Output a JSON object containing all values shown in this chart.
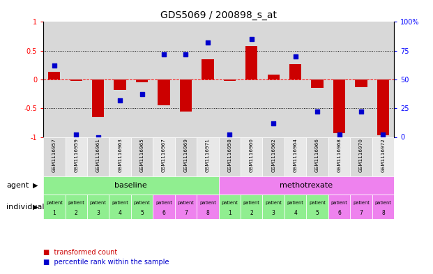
{
  "title": "GDS5069 / 200898_s_at",
  "samples": [
    "GSM1116957",
    "GSM1116959",
    "GSM1116961",
    "GSM1116963",
    "GSM1116965",
    "GSM1116967",
    "GSM1116969",
    "GSM1116971",
    "GSM1116958",
    "GSM1116960",
    "GSM1116962",
    "GSM1116964",
    "GSM1116966",
    "GSM1116968",
    "GSM1116970",
    "GSM1116972"
  ],
  "bar_values": [
    0.13,
    -0.03,
    -0.65,
    -0.18,
    -0.05,
    -0.45,
    -0.56,
    0.35,
    -0.02,
    0.58,
    0.08,
    0.27,
    -0.14,
    -0.93,
    -0.13,
    -0.97
  ],
  "dot_values": [
    62,
    2,
    0,
    32,
    37,
    72,
    72,
    82,
    2,
    85,
    12,
    70,
    22,
    2,
    22,
    2
  ],
  "bar_color": "#cc0000",
  "dot_color": "#0000cc",
  "ylim": [
    -1,
    1
  ],
  "y2lim": [
    0,
    100
  ],
  "yticks": [
    -1,
    -0.5,
    0,
    0.5,
    1
  ],
  "ytick_labels": [
    "-1",
    "-0.5",
    "0",
    "0.5",
    "1"
  ],
  "y2ticks": [
    0,
    25,
    50,
    75,
    100
  ],
  "y2tick_labels": [
    "0",
    "25",
    "50",
    "75",
    "100%"
  ],
  "baseline_label": "baseline",
  "methotrexate_label": "methotrexate",
  "baseline_color": "#90ee90",
  "methotrexate_color": "#ee82ee",
  "agent_label": "agent",
  "individual_label": "individual",
  "baseline_count": 8,
  "methotrexate_count": 8,
  "patient_labels_top": [
    "patient",
    "patient",
    "patient",
    "patient",
    "patient",
    "patient",
    "patient",
    "patient",
    "patient",
    "patient",
    "patient",
    "patient",
    "patient",
    "patient",
    "patient",
    "patient"
  ],
  "patient_labels_bottom": [
    "1",
    "2",
    "3",
    "4",
    "5",
    "6",
    "7",
    "8",
    "1",
    "2",
    "3",
    "4",
    "5",
    "6",
    "7",
    "8"
  ],
  "legend_bar_label": "transformed count",
  "legend_dot_label": "percentile rank within the sample",
  "bar_width": 0.55,
  "title_fontsize": 10,
  "tick_fontsize": 7,
  "label_fontsize": 8,
  "cell_fontsize": 6,
  "bg_color": "#d8d8d8",
  "bg_color2": "#e8e8e8",
  "indiv_baseline_colors": [
    "#90ee90",
    "#90ee90",
    "#90ee90",
    "#90ee90",
    "#90ee90",
    "#ee82ee",
    "#ee82ee",
    "#ee82ee"
  ],
  "indiv_metho_colors": [
    "#90ee90",
    "#90ee90",
    "#90ee90",
    "#90ee90",
    "#90ee90",
    "#ee82ee",
    "#ee82ee",
    "#ee82ee"
  ]
}
